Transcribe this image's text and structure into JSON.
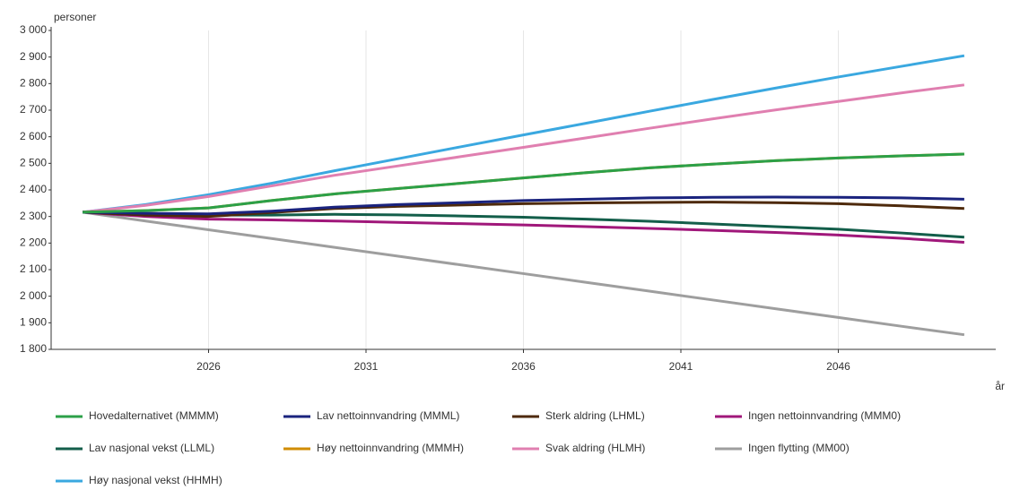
{
  "chart_data": {
    "type": "line",
    "y_label": "personer",
    "x_label": "år",
    "x": [
      2022,
      2024,
      2026,
      2028,
      2030,
      2032,
      2034,
      2036,
      2038,
      2040,
      2042,
      2044,
      2046,
      2048,
      2050
    ],
    "xlim": [
      2021,
      2051
    ],
    "xticks": [
      2026,
      2031,
      2036,
      2041,
      2046
    ],
    "ylim": [
      1800,
      3000
    ],
    "yticks": [
      {
        "value": 1800,
        "label": "1 800"
      },
      {
        "value": 1900,
        "label": "1 900"
      },
      {
        "value": 2000,
        "label": "2 000"
      },
      {
        "value": 2100,
        "label": "2 100"
      },
      {
        "value": 2200,
        "label": "2 200"
      },
      {
        "value": 2300,
        "label": "2 300"
      },
      {
        "value": 2400,
        "label": "2 400"
      },
      {
        "value": 2500,
        "label": "2 500"
      },
      {
        "value": 2600,
        "label": "2 600"
      },
      {
        "value": 2700,
        "label": "2 700"
      },
      {
        "value": 2800,
        "label": "2 800"
      },
      {
        "value": 2900,
        "label": "2 900"
      },
      {
        "value": 3000,
        "label": "3 000"
      }
    ],
    "grid": "x",
    "series": [
      {
        "name": "Hovedalternativet (MMMM)",
        "color": "#2ca048",
        "values": [
          2316,
          2322,
          2332,
          2360,
          2385,
          2405,
          2425,
          2445,
          2465,
          2483,
          2497,
          2510,
          2520,
          2528,
          2535
        ]
      },
      {
        "name": "Lav nettoinnvandring (MMML)",
        "color": "#1a237e",
        "values": [
          2316,
          2312,
          2310,
          2320,
          2335,
          2345,
          2352,
          2360,
          2365,
          2370,
          2372,
          2373,
          2372,
          2370,
          2365
        ]
      },
      {
        "name": "Sterk aldring (LHML)",
        "color": "#4e2a0c",
        "values": [
          2316,
          2305,
          2300,
          2315,
          2330,
          2338,
          2343,
          2348,
          2351,
          2353,
          2354,
          2352,
          2348,
          2340,
          2330
        ]
      },
      {
        "name": "Ingen nettoinnvandring (MMM0)",
        "color": "#a0177a",
        "values": [
          2316,
          2300,
          2290,
          2287,
          2283,
          2278,
          2273,
          2268,
          2262,
          2255,
          2248,
          2240,
          2230,
          2218,
          2203
        ]
      },
      {
        "name": "Lav nasjonal vekst (LLML)",
        "color": "#135e4a",
        "values": [
          2316,
          2310,
          2305,
          2305,
          2308,
          2306,
          2302,
          2297,
          2290,
          2282,
          2272,
          2262,
          2252,
          2238,
          2222
        ]
      },
      {
        "name": "Høy nettoinnvandring (MMMH)",
        "color": "#d08c00",
        "values": [
          2316,
          2322,
          2332,
          2360,
          2385,
          2405,
          2425,
          2445,
          2465,
          2483,
          2497,
          2510,
          2520,
          2528,
          2535
        ]
      },
      {
        "name": "Svak aldring (HLMH)",
        "color": "#e07fb0",
        "values": [
          2316,
          2342,
          2375,
          2415,
          2455,
          2490,
          2525,
          2560,
          2596,
          2632,
          2667,
          2701,
          2733,
          2765,
          2795
        ]
      },
      {
        "name": "Ingen flytting (MM00)",
        "color": "#9e9e9e",
        "values": [
          2316,
          2283,
          2250,
          2217,
          2184,
          2151,
          2118,
          2085,
          2052,
          2019,
          1986,
          1953,
          1920,
          1887,
          1855
        ]
      },
      {
        "name": "Høy nasjonal vekst (HHMH)",
        "color": "#3aa8e0",
        "values": [
          2316,
          2345,
          2382,
          2425,
          2472,
          2517,
          2562,
          2607,
          2651,
          2696,
          2740,
          2783,
          2825,
          2865,
          2905
        ]
      }
    ]
  }
}
